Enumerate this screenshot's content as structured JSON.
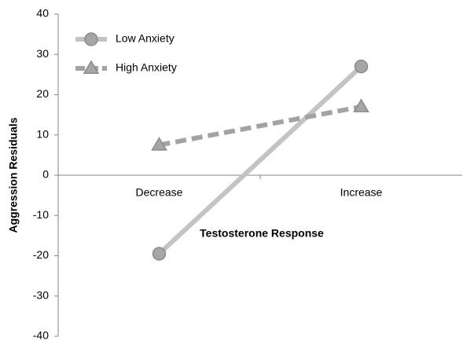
{
  "chart_data": {
    "type": "line",
    "categories": [
      "Decrease",
      "Increase"
    ],
    "series": [
      {
        "name": "Low Anxiety",
        "color": "#c3c3c3",
        "marker": "circle",
        "linestyle": "solid",
        "values": [
          -19.5,
          27
        ]
      },
      {
        "name": "High Anxiety",
        "color": "#a3a3a3",
        "marker": "triangle",
        "linestyle": "dashed",
        "values": [
          7.5,
          17
        ]
      }
    ],
    "xlabel": "Testosterone Response",
    "ylabel": "Aggression Residuals",
    "ylim": [
      -40,
      40
    ],
    "yticks": [
      -40,
      -30,
      -20,
      -10,
      0,
      10,
      20,
      30,
      40
    ],
    "legend": "upper left",
    "grid": false
  }
}
